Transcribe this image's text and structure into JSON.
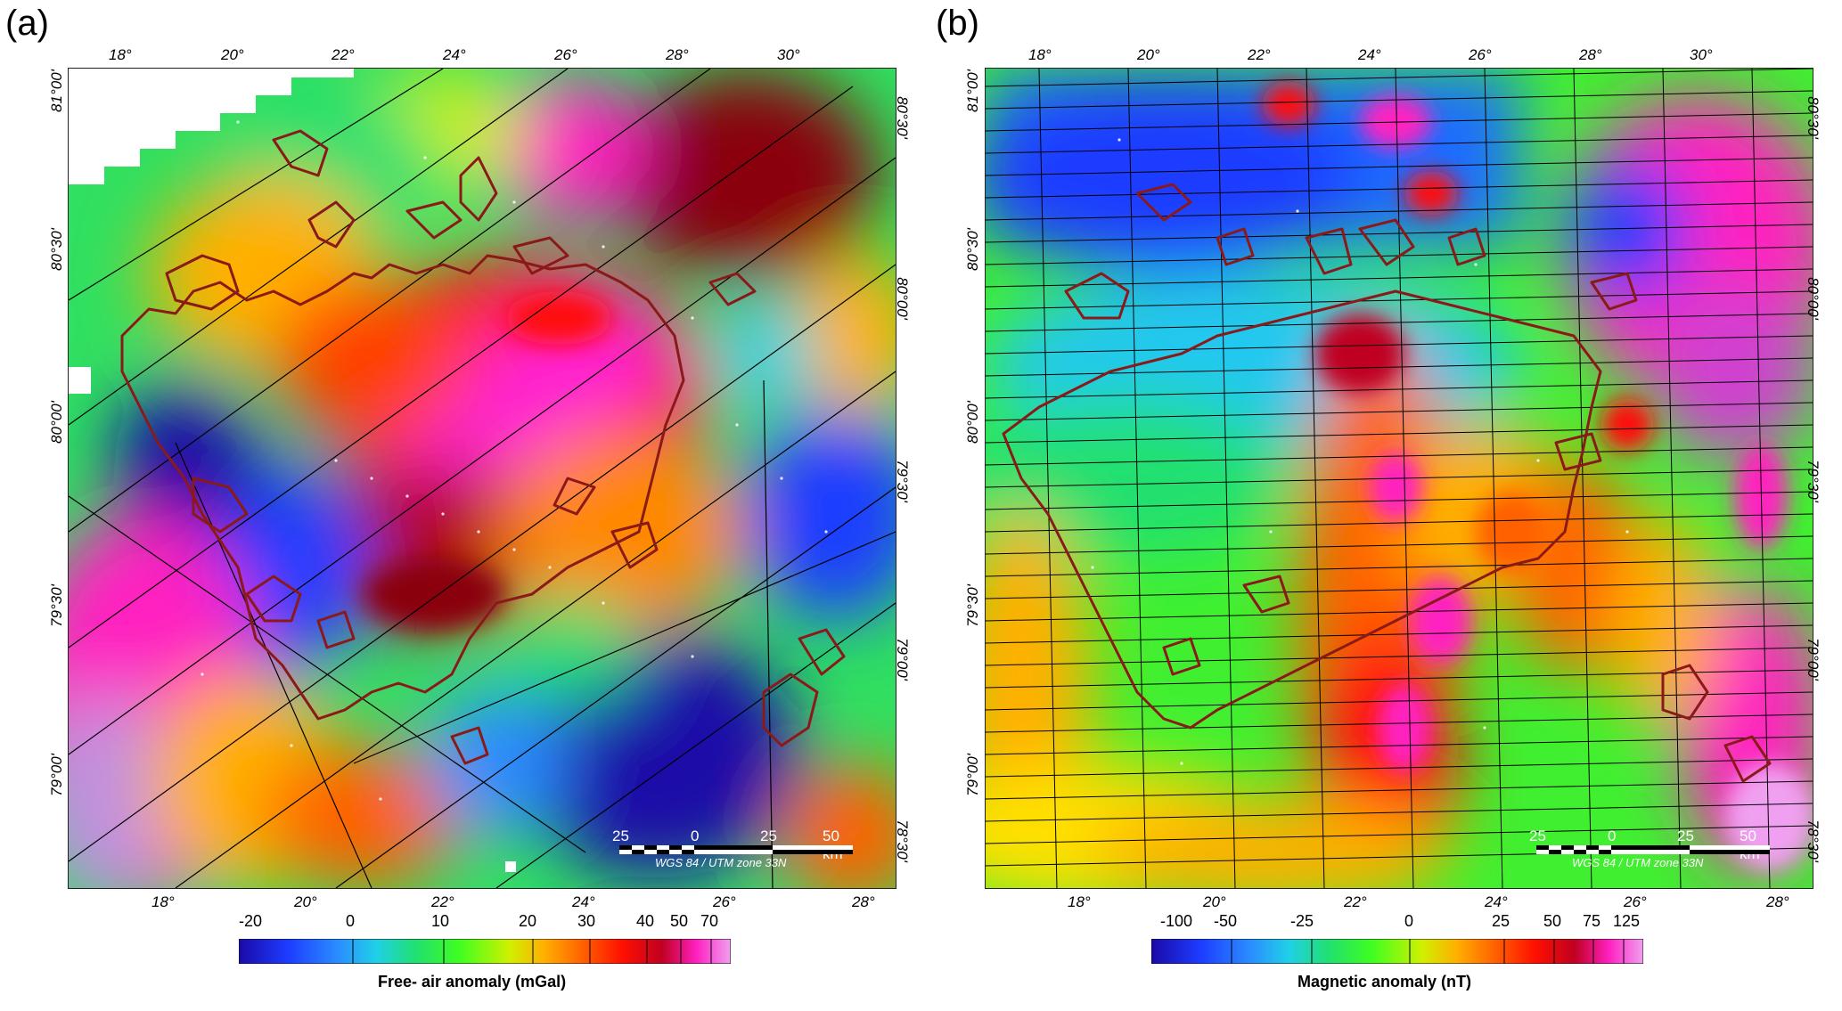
{
  "panels": [
    {
      "letter": "(a)",
      "top_lon_labels": [
        "18°",
        "20°",
        "22°",
        "24°",
        "26°",
        "28°",
        "30°"
      ],
      "bottom_lon_labels": [
        "18°",
        "20°",
        "22°",
        "24°",
        "26°",
        "28°"
      ],
      "left_lat_labels": [
        "81°00'",
        "80°30'",
        "80°00'",
        "79°30'",
        "79°00'"
      ],
      "right_lat_labels": [
        "80°30'",
        "80°00'",
        "79°30'",
        "79°00'",
        "78°30'"
      ],
      "scale_labels": [
        "25",
        "0",
        "25",
        "50 km"
      ],
      "projection": "WGS 84 / UTM zone 33N",
      "colorbar_ticks": [
        "-20",
        "0",
        "10",
        "20",
        "30",
        "40",
        "50",
        "70"
      ],
      "colorbar_title": "Free- air anomaly (mGal)"
    },
    {
      "letter": "(b)",
      "top_lon_labels": [
        "18°",
        "20°",
        "22°",
        "24°",
        "26°",
        "28°",
        "30°"
      ],
      "bottom_lon_labels": [
        "18°",
        "20°",
        "22°",
        "24°",
        "26°",
        "28°"
      ],
      "left_lat_labels": [
        "81°00'",
        "80°30'",
        "80°00'",
        "79°30'",
        "79°00'"
      ],
      "right_lat_labels": [
        "80°30'",
        "80°00'",
        "79°30'",
        "79°00'",
        "78°30'"
      ],
      "scale_labels": [
        "25",
        "0",
        "25",
        "50 km"
      ],
      "projection": "WGS 84 / UTM zone 33N",
      "colorbar_ticks": [
        "-100",
        "-50",
        "-25",
        "0",
        "25",
        "50",
        "75",
        "125"
      ],
      "colorbar_title": "Magnetic  anomaly (nT)"
    }
  ],
  "colors": {
    "coastline": "#8a1a1a",
    "ramp": [
      "#1a0aa8",
      "#1e3cff",
      "#2a8cff",
      "#20d0e8",
      "#20e070",
      "#40ff20",
      "#a0f000",
      "#f0f000",
      "#ffb000",
      "#ff6000",
      "#ff1000",
      "#c00020",
      "#ff20c0",
      "#f0a0f0"
    ]
  }
}
